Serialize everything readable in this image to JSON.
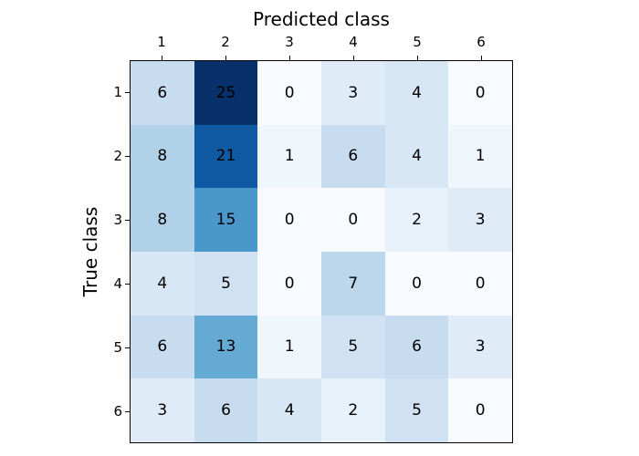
{
  "figure": {
    "background": "#ffffff",
    "border_color": "#000000",
    "text_color": "#000000"
  },
  "chart_data": {
    "type": "heatmap",
    "subtype": "confusion-matrix",
    "xlabel": "Predicted class",
    "ylabel": "True class",
    "x_tick_labels": [
      "1",
      "2",
      "3",
      "4",
      "5",
      "6"
    ],
    "y_tick_labels": [
      "1",
      "2",
      "3",
      "4",
      "5",
      "6"
    ],
    "rows": [
      [
        6,
        25,
        0,
        3,
        4,
        0
      ],
      [
        8,
        21,
        1,
        6,
        4,
        1
      ],
      [
        8,
        15,
        0,
        0,
        2,
        3
      ],
      [
        4,
        5,
        0,
        7,
        0,
        0
      ],
      [
        6,
        13,
        1,
        5,
        6,
        3
      ],
      [
        3,
        6,
        4,
        2,
        5,
        0
      ]
    ],
    "vmin": 0,
    "vmax": 25,
    "colormap": "Blues",
    "colormap_stops": [
      "#f7fbff",
      "#deebf7",
      "#c6dbef",
      "#9ecae1",
      "#6baed6",
      "#4292c6",
      "#2171b5",
      "#08519c",
      "#08306b"
    ],
    "cell_text_color": "#000000",
    "grid": false,
    "legend": false,
    "x_axis_position": "top"
  }
}
